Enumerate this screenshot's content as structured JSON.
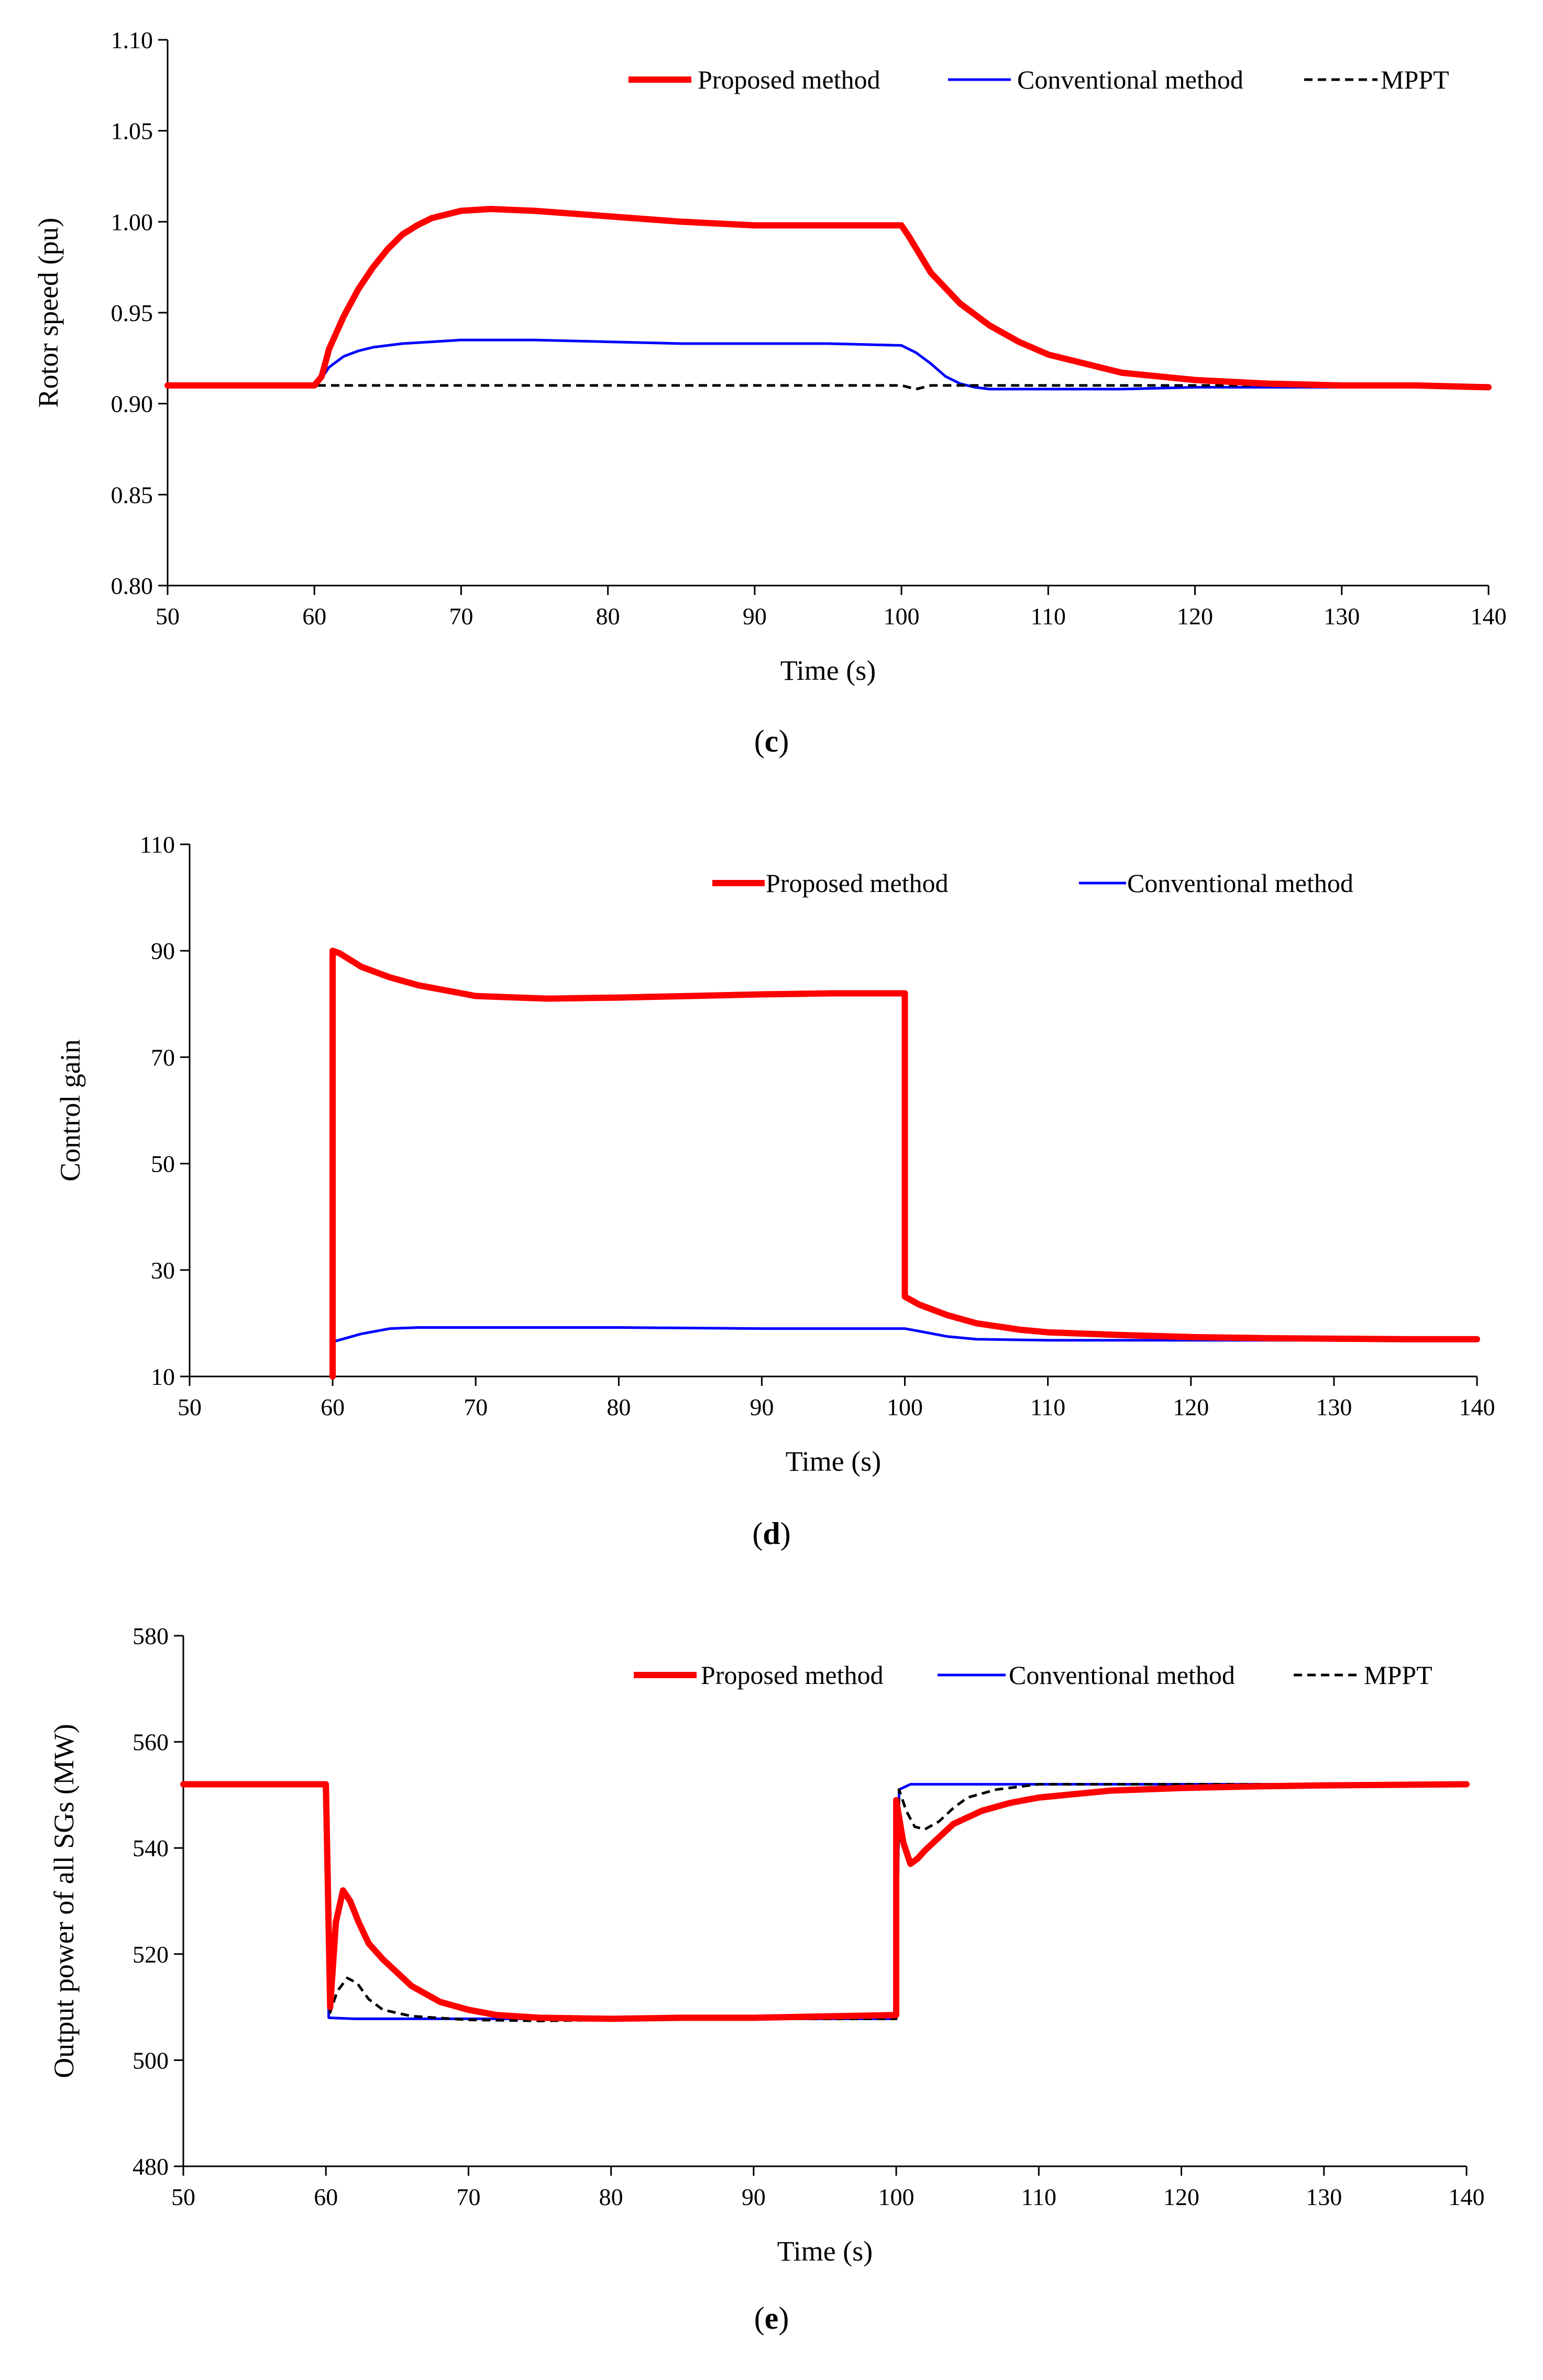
{
  "chart_data": [
    {
      "type": "line",
      "panel_label": "c",
      "xlabel": "Time (s)",
      "ylabel": "Rotor speed (pu)",
      "xlim": [
        50,
        140
      ],
      "ylim": [
        0.8,
        1.1
      ],
      "xticks": [
        50,
        60,
        70,
        80,
        90,
        100,
        110,
        120,
        130,
        140
      ],
      "yticks": [
        0.8,
        0.85,
        0.9,
        0.95,
        1.0,
        1.05,
        1.1
      ],
      "ytick_labels": [
        "0.80",
        "0.85",
        "0.90",
        "0.95",
        "1.00",
        "1.05",
        "1.10"
      ],
      "legend_position": "top-right",
      "series": [
        {
          "name": "Proposed method",
          "color": "#ff0000",
          "style": "solid",
          "width": "thick",
          "x": [
            50,
            60,
            60.5,
            61,
            62,
            63,
            64,
            65,
            66,
            67,
            68,
            69,
            70,
            72,
            75,
            80,
            85,
            90,
            95,
            100,
            100.5,
            102,
            104,
            106,
            108,
            110,
            115,
            120,
            125,
            130,
            135,
            140
          ],
          "y": [
            0.91,
            0.91,
            0.915,
            0.93,
            0.948,
            0.963,
            0.975,
            0.985,
            0.993,
            0.998,
            1.002,
            1.004,
            1.006,
            1.007,
            1.006,
            1.003,
            1.0,
            0.998,
            0.998,
            0.998,
            0.992,
            0.972,
            0.955,
            0.943,
            0.934,
            0.927,
            0.917,
            0.913,
            0.911,
            0.91,
            0.91,
            0.909
          ]
        },
        {
          "name": "Conventional method",
          "color": "#0000ff",
          "style": "solid",
          "width": "thin",
          "x": [
            50,
            60,
            60.5,
            61,
            62,
            63,
            64,
            65,
            66,
            68,
            70,
            72,
            75,
            80,
            85,
            90,
            95,
            100,
            101,
            102,
            103,
            104,
            105,
            106,
            108,
            110,
            115,
            120,
            130,
            140
          ],
          "y": [
            0.91,
            0.91,
            0.914,
            0.92,
            0.926,
            0.929,
            0.931,
            0.932,
            0.933,
            0.934,
            0.935,
            0.935,
            0.935,
            0.934,
            0.933,
            0.933,
            0.933,
            0.932,
            0.928,
            0.922,
            0.915,
            0.911,
            0.909,
            0.908,
            0.908,
            0.908,
            0.908,
            0.909,
            0.909,
            0.91
          ]
        },
        {
          "name": "MPPT",
          "color": "#000000",
          "style": "dashed",
          "width": "thin",
          "x": [
            50,
            100,
            100.5,
            101,
            102,
            140
          ],
          "y": [
            0.91,
            0.91,
            0.909,
            0.908,
            0.91,
            0.91
          ]
        }
      ]
    },
    {
      "type": "line",
      "panel_label": "d",
      "xlabel": "Time (s)",
      "ylabel": "Control gain",
      "xlim": [
        50,
        140
      ],
      "ylim": [
        10,
        110
      ],
      "xticks": [
        50,
        60,
        70,
        80,
        90,
        100,
        110,
        120,
        130,
        140
      ],
      "yticks": [
        10,
        30,
        50,
        70,
        90,
        110
      ],
      "ytick_labels": [
        "10",
        "30",
        "50",
        "70",
        "90",
        "110"
      ],
      "legend_position": "top-right",
      "series": [
        {
          "name": "Proposed method",
          "color": "#ff0000",
          "style": "solid",
          "width": "thick",
          "x": [
            60,
            60,
            60.5,
            62,
            64,
            66,
            68,
            70,
            75,
            80,
            85,
            90,
            95,
            100,
            100,
            101,
            103,
            105,
            108,
            110,
            115,
            120,
            125,
            130,
            135,
            140
          ],
          "y": [
            10,
            90,
            89.5,
            87,
            85,
            83.5,
            82.5,
            81.5,
            81,
            81.2,
            81.5,
            81.8,
            82,
            82,
            25,
            23.5,
            21.5,
            20,
            18.8,
            18.3,
            17.8,
            17.4,
            17.2,
            17.1,
            17,
            17
          ]
        },
        {
          "name": "Conventional method",
          "color": "#0000ff",
          "style": "solid",
          "width": "thin",
          "x": [
            60,
            60,
            62,
            64,
            66,
            70,
            80,
            90,
            100,
            101,
            103,
            105,
            110,
            120,
            130,
            140
          ],
          "y": [
            10,
            16.5,
            18,
            19,
            19.2,
            19.2,
            19.2,
            19,
            19,
            18.5,
            17.5,
            17,
            16.8,
            16.8,
            16.8,
            16.8
          ]
        }
      ]
    },
    {
      "type": "line",
      "panel_label": "e",
      "xlabel": "Time (s)",
      "ylabel": "Output power of all SGs (MW)",
      "xlim": [
        50,
        140
      ],
      "ylim": [
        480,
        580
      ],
      "xticks": [
        50,
        60,
        70,
        80,
        90,
        100,
        110,
        120,
        130,
        140
      ],
      "yticks": [
        480,
        500,
        520,
        540,
        560,
        580
      ],
      "ytick_labels": [
        "480",
        "500",
        "520",
        "540",
        "560",
        "580"
      ],
      "legend_position": "top-right",
      "series": [
        {
          "name": "Proposed method",
          "color": "#ff0000",
          "style": "solid",
          "width": "thick",
          "x": [
            50,
            60,
            60.3,
            60.7,
            61.2,
            61.7,
            62.3,
            63,
            64,
            66,
            68,
            70,
            72,
            75,
            80,
            85,
            90,
            100,
            100,
            100.5,
            101,
            101.5,
            102,
            103,
            104,
            106,
            108,
            110,
            115,
            120,
            125,
            130,
            140
          ],
          "y": [
            552,
            552,
            510,
            526,
            532,
            530,
            526,
            522,
            519,
            514,
            511,
            509.5,
            508.5,
            508,
            507.8,
            508,
            508,
            508.5,
            549,
            541,
            537,
            538,
            539.5,
            542,
            544.5,
            547,
            548.5,
            549.5,
            550.8,
            551.3,
            551.6,
            551.8,
            552
          ]
        },
        {
          "name": "Conventional method",
          "color": "#0000ff",
          "style": "solid",
          "width": "thin",
          "x": [
            50,
            60,
            60.2,
            62,
            70,
            80,
            90,
            100,
            100.2,
            101,
            110,
            140
          ],
          "y": [
            552,
            552,
            508,
            507.8,
            507.8,
            507.8,
            507.8,
            507.8,
            551,
            552,
            552,
            552
          ]
        },
        {
          "name": "MPPT",
          "color": "#000000",
          "style": "dashed",
          "width": "thin",
          "x": [
            50,
            60,
            60.3,
            60.8,
            61.5,
            62.2,
            63,
            64,
            66,
            70,
            75,
            80,
            90,
            100,
            100.2,
            100.7,
            101.3,
            102,
            103,
            104,
            105,
            107,
            110,
            140
          ],
          "y": [
            552,
            552,
            509,
            513,
            515.5,
            514.5,
            511.5,
            509.5,
            508.3,
            507.6,
            507.4,
            507.6,
            507.8,
            507.8,
            551,
            547,
            544,
            543.5,
            545,
            547.5,
            549.5,
            551,
            552,
            552
          ]
        }
      ]
    }
  ]
}
